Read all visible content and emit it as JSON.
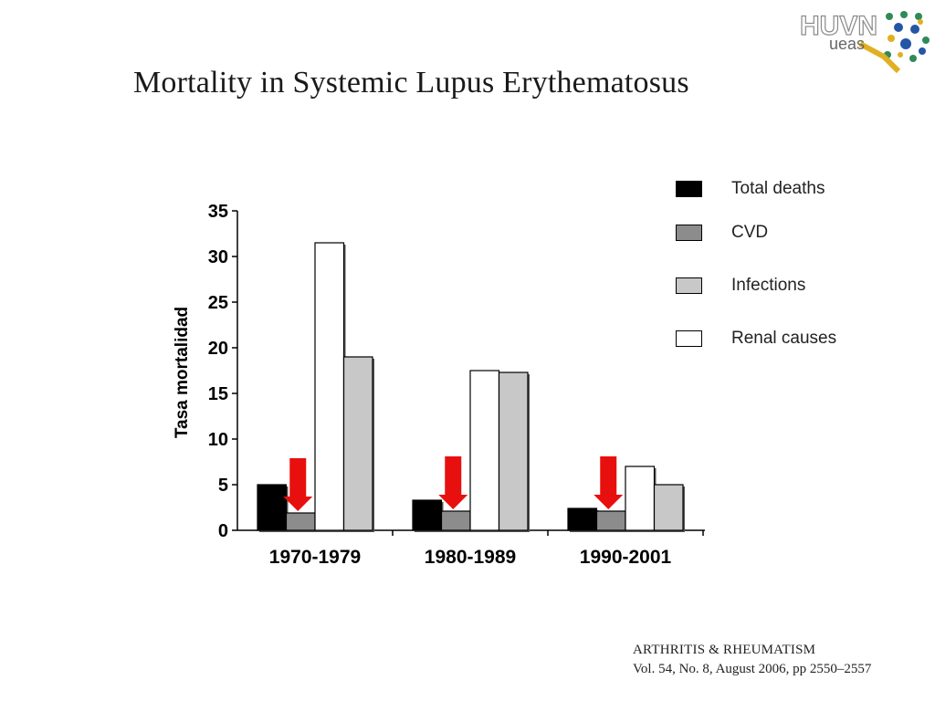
{
  "slide": {
    "title": "Mortality in Systemic Lupus Erythematosus",
    "logo_text_top": "HUVN",
    "logo_text_bottom": "ueas"
  },
  "citation": {
    "line1": "ARTHRITIS & RHEUMATISM",
    "line2": "Vol. 54, No. 8, August 2006, pp 2550–2557"
  },
  "chart_data": {
    "type": "bar",
    "title": "",
    "xlabel": "",
    "ylabel": "Tasa mortalidad",
    "ylim": [
      0,
      35
    ],
    "yticks": [
      "0",
      "5",
      "10",
      "15",
      "20",
      "25",
      "30",
      "35"
    ],
    "categories": [
      "1970-1979",
      "1980-1989",
      "1990-2001"
    ],
    "series": [
      {
        "name": "Total deaths",
        "color": "#000000",
        "values": [
          5.0,
          3.3,
          2.4
        ]
      },
      {
        "name": "CVD",
        "color": "#8c8c8c",
        "values": [
          1.9,
          2.1,
          2.1
        ]
      },
      {
        "name": "Renal causes",
        "color": "#ffffff",
        "values": [
          31.5,
          17.5,
          7.0
        ]
      },
      {
        "name": "Infections",
        "color": "#c8c8c8",
        "values": [
          19.0,
          17.3,
          5.0
        ]
      }
    ],
    "legend": {
      "placement": "right",
      "entries": [
        {
          "label": "Total deaths",
          "color": "#000000"
        },
        {
          "label": "CVD",
          "color": "#8c8c8c"
        },
        {
          "label": "Infections",
          "color": "#c8c8c8"
        },
        {
          "label": "Renal causes",
          "color": "#ffffff"
        }
      ]
    },
    "annotations": {
      "arrow_color": "#e8100e",
      "arrow_target_series": "CVD"
    },
    "grid": false
  }
}
